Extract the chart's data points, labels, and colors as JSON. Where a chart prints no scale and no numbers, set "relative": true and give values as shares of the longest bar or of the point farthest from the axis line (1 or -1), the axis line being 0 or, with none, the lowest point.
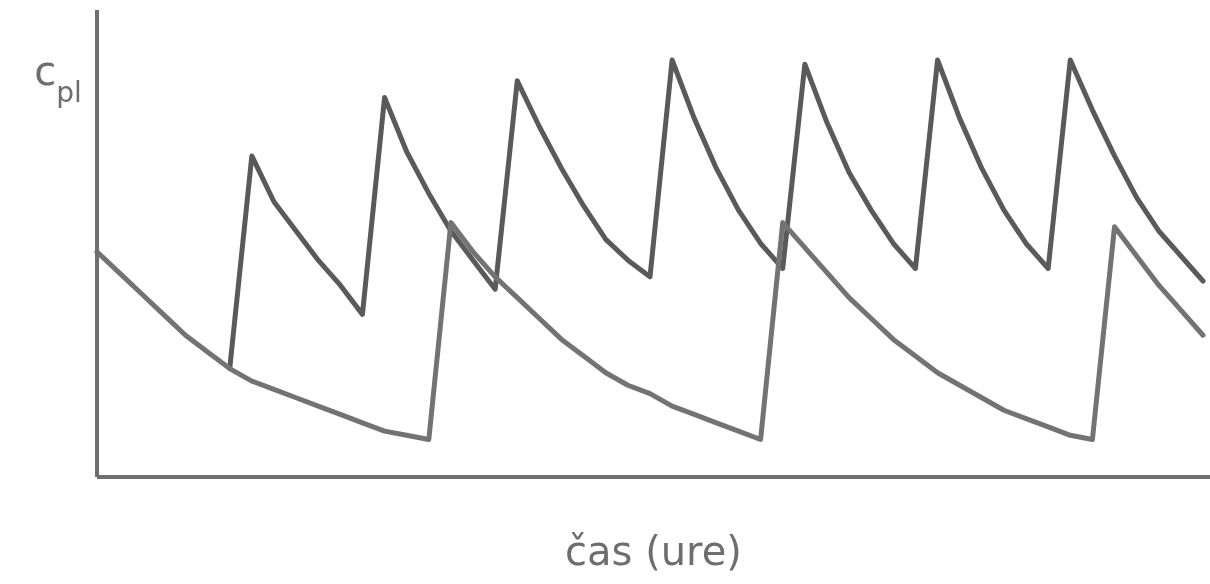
{
  "chart_data": {
    "type": "line",
    "relative": true,
    "xlabel": "čas (ure)",
    "ylabel": "c$_{pl}$",
    "categories": [
      null,
      null,
      null,
      null,
      null,
      null,
      null,
      null,
      null,
      null,
      null,
      null,
      null,
      null,
      null,
      null,
      null,
      null,
      null,
      null,
      null,
      null,
      null,
      null,
      null,
      null,
      null,
      null,
      null,
      null,
      null,
      null,
      null,
      null,
      null,
      null,
      null,
      null,
      null,
      null,
      null,
      null,
      null,
      null,
      null,
      null,
      null,
      null,
      null,
      null,
      null
    ],
    "series": [
      {
        "color": "#5a5a5a",
        "values": [
          null,
          null,
          null,
          null,
          null,
          null,
          0.26,
          0.77,
          0.66,
          0.59,
          0.52,
          0.46,
          0.39,
          0.91,
          0.78,
          0.68,
          0.59,
          0.52,
          0.45,
          0.95,
          0.84,
          0.74,
          0.65,
          0.57,
          0.52,
          0.48,
          1.0,
          0.86,
          0.74,
          0.64,
          0.56,
          0.5,
          0.99,
          0.85,
          0.73,
          0.64,
          0.56,
          0.5,
          1.0,
          0.86,
          0.74,
          0.64,
          0.56,
          0.5,
          1.0,
          0.88,
          0.77,
          0.67,
          0.59,
          0.53,
          0.47
        ]
      },
      {
        "color": "#737373",
        "values": [
          0.54,
          0.49,
          0.44,
          0.39,
          0.34,
          0.3,
          0.26,
          0.23,
          0.21,
          0.19,
          0.17,
          0.15,
          0.13,
          0.11,
          0.1,
          0.09,
          0.61,
          0.54,
          0.48,
          0.43,
          0.38,
          0.33,
          0.29,
          0.25,
          0.22,
          0.2,
          0.17,
          0.15,
          0.13,
          0.11,
          0.09,
          0.61,
          0.55,
          0.49,
          0.43,
          0.38,
          0.33,
          0.29,
          0.25,
          0.22,
          0.19,
          0.16,
          0.14,
          0.12,
          0.1,
          0.09,
          0.6,
          0.53,
          0.46,
          0.4,
          0.34
        ]
      }
    ]
  }
}
